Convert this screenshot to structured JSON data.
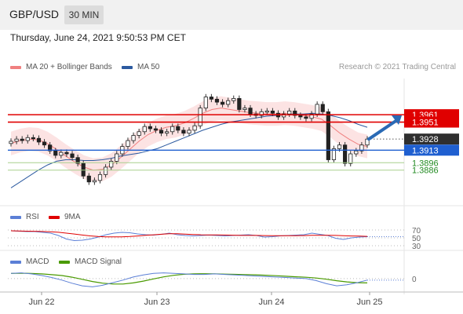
{
  "header": {
    "symbol": "GBP/USD",
    "interval": "30 MIN"
  },
  "timestamp": "Thursday, June 24, 2021 9:50:53 PM CET",
  "legend": {
    "ma20": "MA 20 + Bollinger Bands",
    "ma50": "MA 50",
    "copyright": "Research © 2021 Trading Central"
  },
  "colors": {
    "ma20": "#f08080",
    "ma50": "#2c5aa0",
    "resistance": "#e00000",
    "support": "#1f5fd0",
    "target": "#228b22",
    "arrow": "#2a6ab5",
    "rsi": "#5b7fd6",
    "rsi_ma": "#e00000",
    "macd": "#5b7fd6",
    "macd_signal": "#4a9a00"
  },
  "chart_data": [
    {
      "type": "candlestick",
      "price_levels": [
        {
          "value": 1.3961,
          "label": "1.3961",
          "kind": "resistance"
        },
        {
          "value": 1.3951,
          "label": "1.3951",
          "kind": "resistance"
        },
        {
          "value": 1.3928,
          "label": "1.3928",
          "kind": "last_price"
        },
        {
          "value": 1.3913,
          "label": "1.3913",
          "kind": "pivot"
        },
        {
          "value": 1.3896,
          "label": "1.3896",
          "kind": "support"
        },
        {
          "value": 1.3886,
          "label": "1.3886",
          "kind": "support"
        }
      ],
      "x_ticks": [
        "Jun 22",
        "Jun 23",
        "Jun 24",
        "Jun 25"
      ],
      "ylim": [
        1.384,
        1.401
      ],
      "close_series": [
        1.3925,
        1.3928,
        1.3926,
        1.393,
        1.3929,
        1.3924,
        1.392,
        1.3912,
        1.3906,
        1.391,
        1.3908,
        1.3903,
        1.3895,
        1.3878,
        1.387,
        1.3872,
        1.388,
        1.389,
        1.3898,
        1.3908,
        1.3918,
        1.3926,
        1.3933,
        1.3938,
        1.3945,
        1.3942,
        1.394,
        1.3936,
        1.3938,
        1.3945,
        1.394,
        1.3936,
        1.394,
        1.3946,
        1.397,
        1.3985,
        1.3982,
        1.3978,
        1.3975,
        1.398,
        1.3983,
        1.3968,
        1.397,
        1.3962,
        1.396,
        1.3965,
        1.3966,
        1.3963,
        1.3958,
        1.3962,
        1.3966,
        1.396,
        1.3958,
        1.3956,
        1.3962,
        1.3975,
        1.3965,
        1.39,
        1.3915,
        1.392,
        1.3895,
        1.3908,
        1.3912,
        1.392,
        1.3928
      ],
      "ma50_series": [
        1.3862,
        1.387,
        1.3878,
        1.3886,
        1.3893,
        1.3898,
        1.39,
        1.39,
        1.3899,
        1.3899,
        1.39,
        1.3902,
        1.3905,
        1.3907,
        1.3909,
        1.3912,
        1.3915,
        1.392,
        1.3925,
        1.393,
        1.3935,
        1.394,
        1.3944,
        1.3948,
        1.3951,
        1.3953,
        1.3955,
        1.3957,
        1.3959,
        1.396,
        1.3961,
        1.3962,
        1.3962,
        1.3963,
        1.3962,
        1.396,
        1.3957,
        1.3953,
        1.3948,
        1.3944
      ],
      "ma20_series": [
        1.3922,
        1.3926,
        1.3928,
        1.3927,
        1.3922,
        1.3914,
        1.3905,
        1.3897,
        1.389,
        1.3886,
        1.3887,
        1.3893,
        1.3903,
        1.3914,
        1.3925,
        1.3934,
        1.394,
        1.3944,
        1.3946,
        1.395,
        1.3956,
        1.3963,
        1.3968,
        1.397,
        1.3968,
        1.3966,
        1.3964,
        1.3963,
        1.3962,
        1.3962,
        1.3963,
        1.3962,
        1.396,
        1.3958,
        1.3955,
        1.3946,
        1.3936,
        1.3928,
        1.3921,
        1.3918
      ]
    },
    {
      "type": "line",
      "name": "RSI",
      "series": [
        {
          "name": "RSI"
        },
        {
          "name": "9MA"
        }
      ],
      "y_ticks": [
        "70",
        "50",
        "30"
      ],
      "values": [
        68,
        67,
        66,
        66,
        64,
        62,
        56,
        47,
        43,
        44,
        47,
        52,
        58,
        62,
        64,
        63,
        60,
        58,
        57,
        59,
        62,
        58,
        56,
        55,
        56,
        57,
        56,
        55,
        56,
        57,
        58,
        56,
        52,
        53,
        55,
        56,
        57,
        58,
        62,
        59,
        56,
        49,
        46,
        50,
        52,
        53
      ]
    },
    {
      "type": "line",
      "name": "MACD",
      "series": [
        {
          "name": "MACD"
        },
        {
          "name": "MACD Signal"
        }
      ],
      "y_ticks": [
        "0"
      ],
      "values": [
        0.001,
        0.0011,
        0.0009,
        0.0006,
        0.0002,
        -0.0003,
        -0.0009,
        -0.0014,
        -0.0016,
        -0.0013,
        -0.0008,
        -0.0003,
        0.0003,
        0.0007,
        0.001,
        0.0011,
        0.001,
        0.0009,
        0.0008,
        0.0008,
        0.0009,
        0.0008,
        0.0007,
        0.0006,
        0.0005,
        0.0004,
        0.0003,
        0.0002,
        0.0001,
        0.0,
        -0.0004,
        -0.001,
        -0.0014,
        -0.0012,
        -0.0008,
        -0.0003
      ]
    }
  ],
  "rsi_legend": {
    "rsi": "RSI",
    "ma": "9MA"
  },
  "macd_legend": {
    "macd": "MACD",
    "signal": "MACD Signal"
  }
}
